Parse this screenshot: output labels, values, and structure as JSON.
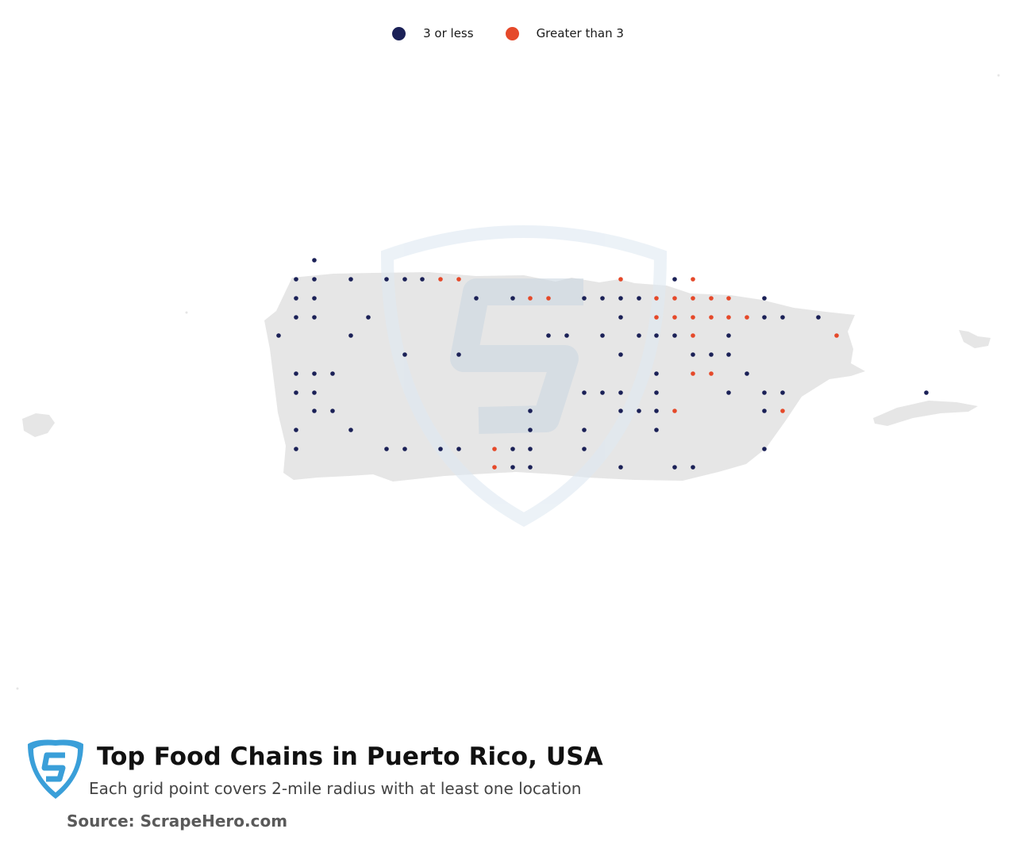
{
  "legend": {
    "items": [
      {
        "label": "3 or less",
        "color": "#1b2157"
      },
      {
        "label": "Greater than 3",
        "color": "#e5492a"
      }
    ]
  },
  "map": {
    "region": "Puerto Rico",
    "land_color": "#e6e6e6",
    "watermark_icon": "scrapehero-shield-icon"
  },
  "footer": {
    "title": "Top Food Chains in Puerto Rico, USA",
    "subtitle": "Each grid point covers 2-mile radius with at least one location",
    "source": "Source: ScrapeHero.com",
    "logo_icon": "scrapehero-shield-icon"
  }
}
